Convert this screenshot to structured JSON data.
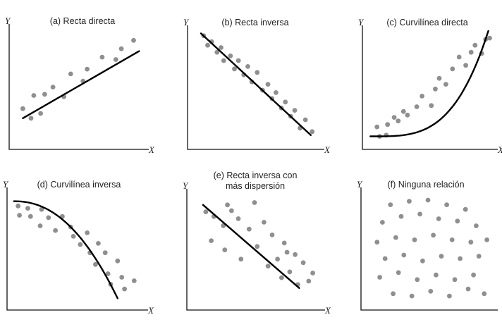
{
  "chart_data": [
    {
      "id": "a",
      "type": "scatter",
      "title_lines": [
        "(a) Recta directa"
      ],
      "xlabel": "X",
      "ylabel": "Y",
      "trend": {
        "kind": "line",
        "points": [
          [
            0.1,
            0.26
          ],
          [
            0.95,
            0.82
          ]
        ]
      },
      "points": [
        [
          0.1,
          0.34
        ],
        [
          0.16,
          0.26
        ],
        [
          0.18,
          0.45
        ],
        [
          0.23,
          0.3
        ],
        [
          0.26,
          0.46
        ],
        [
          0.32,
          0.52
        ],
        [
          0.4,
          0.44
        ],
        [
          0.45,
          0.63
        ],
        [
          0.54,
          0.57
        ],
        [
          0.57,
          0.67
        ],
        [
          0.68,
          0.77
        ],
        [
          0.78,
          0.75
        ],
        [
          0.82,
          0.84
        ],
        [
          0.91,
          0.91
        ]
      ]
    },
    {
      "id": "b",
      "type": "scatter",
      "title_lines": [
        "(b) Recta inversa"
      ],
      "xlabel": "X",
      "ylabel": "Y",
      "trend": {
        "kind": "line",
        "points": [
          [
            0.1,
            0.98
          ],
          [
            0.92,
            0.12
          ]
        ]
      },
      "points": [
        [
          0.12,
          0.96
        ],
        [
          0.15,
          0.88
        ],
        [
          0.18,
          0.91
        ],
        [
          0.22,
          0.82
        ],
        [
          0.25,
          0.86
        ],
        [
          0.27,
          0.75
        ],
        [
          0.32,
          0.79
        ],
        [
          0.35,
          0.68
        ],
        [
          0.38,
          0.75
        ],
        [
          0.42,
          0.63
        ],
        [
          0.45,
          0.7
        ],
        [
          0.48,
          0.57
        ],
        [
          0.52,
          0.65
        ],
        [
          0.56,
          0.5
        ],
        [
          0.6,
          0.55
        ],
        [
          0.63,
          0.43
        ],
        [
          0.66,
          0.48
        ],
        [
          0.7,
          0.35
        ],
        [
          0.73,
          0.4
        ],
        [
          0.77,
          0.28
        ],
        [
          0.8,
          0.33
        ],
        [
          0.84,
          0.18
        ],
        [
          0.88,
          0.25
        ],
        [
          0.93,
          0.15
        ]
      ]
    },
    {
      "id": "c",
      "type": "scatter",
      "title_lines": [
        "(c) Curvilínea directa"
      ],
      "xlabel": "X",
      "ylabel": "Y",
      "trend": {
        "kind": "power",
        "p": 3.5,
        "x0": 0.06,
        "x1": 0.95,
        "y0": 0.11,
        "y1": 1.0
      },
      "points": [
        [
          0.11,
          0.19
        ],
        [
          0.13,
          0.11
        ],
        [
          0.18,
          0.12
        ],
        [
          0.19,
          0.21
        ],
        [
          0.24,
          0.27
        ],
        [
          0.27,
          0.24
        ],
        [
          0.31,
          0.32
        ],
        [
          0.34,
          0.29
        ],
        [
          0.41,
          0.36
        ],
        [
          0.45,
          0.45
        ],
        [
          0.52,
          0.37
        ],
        [
          0.55,
          0.51
        ],
        [
          0.58,
          0.6
        ],
        [
          0.63,
          0.55
        ],
        [
          0.68,
          0.68
        ],
        [
          0.73,
          0.78
        ],
        [
          0.78,
          0.71
        ],
        [
          0.82,
          0.82
        ],
        [
          0.85,
          0.88
        ],
        [
          0.9,
          0.81
        ],
        [
          0.93,
          0.93
        ],
        [
          0.96,
          0.94
        ]
      ]
    },
    {
      "id": "d",
      "type": "scatter",
      "title_lines": [
        "(d) Curvilínea inversa"
      ],
      "xlabel": "X",
      "ylabel": "Y",
      "trend": {
        "kind": "power-inverse",
        "p": 2.2,
        "x0": 0.05,
        "x1": 0.8,
        "y0": 0.1,
        "y1": 0.93
      },
      "points": [
        [
          0.08,
          0.89
        ],
        [
          0.09,
          0.81
        ],
        [
          0.15,
          0.87
        ],
        [
          0.17,
          0.8
        ],
        [
          0.24,
          0.72
        ],
        [
          0.25,
          0.86
        ],
        [
          0.3,
          0.79
        ],
        [
          0.35,
          0.68
        ],
        [
          0.4,
          0.8
        ],
        [
          0.46,
          0.71
        ],
        [
          0.48,
          0.63
        ],
        [
          0.53,
          0.56
        ],
        [
          0.58,
          0.66
        ],
        [
          0.6,
          0.49
        ],
        [
          0.64,
          0.39
        ],
        [
          0.66,
          0.57
        ],
        [
          0.71,
          0.49
        ],
        [
          0.73,
          0.31
        ],
        [
          0.75,
          0.22
        ],
        [
          0.8,
          0.42
        ],
        [
          0.83,
          0.28
        ],
        [
          0.85,
          0.18
        ],
        [
          0.92,
          0.25
        ]
      ]
    },
    {
      "id": "e",
      "type": "scatter",
      "title_lines": [
        "(e) Recta inversa con",
        "más dispersión"
      ],
      "xlabel": "X",
      "ylabel": "Y",
      "trend": {
        "kind": "line",
        "points": [
          [
            0.12,
            0.91
          ],
          [
            0.83,
            0.19
          ]
        ]
      },
      "points": [
        [
          0.14,
          0.85
        ],
        [
          0.2,
          0.81
        ],
        [
          0.27,
          0.73
        ],
        [
          0.3,
          0.91
        ],
        [
          0.33,
          0.86
        ],
        [
          0.38,
          0.79
        ],
        [
          0.46,
          0.7
        ],
        [
          0.5,
          0.93
        ],
        [
          0.52,
          0.55
        ],
        [
          0.57,
          0.76
        ],
        [
          0.63,
          0.65
        ],
        [
          0.67,
          0.44
        ],
        [
          0.72,
          0.58
        ],
        [
          0.76,
          0.33
        ],
        [
          0.8,
          0.48
        ],
        [
          0.86,
          0.41
        ],
        [
          0.9,
          0.25
        ],
        [
          0.93,
          0.32
        ],
        [
          0.18,
          0.6
        ],
        [
          0.28,
          0.52
        ],
        [
          0.4,
          0.44
        ],
        [
          0.6,
          0.38
        ],
        [
          0.7,
          0.28
        ],
        [
          0.82,
          0.22
        ],
        [
          0.74,
          0.5
        ]
      ]
    },
    {
      "id": "f",
      "type": "scatter",
      "title_lines": [
        "(f) Ninguna relación"
      ],
      "xlabel": "",
      "ylabel": "Y",
      "trend": null,
      "points": [
        [
          0.22,
          0.9
        ],
        [
          0.36,
          0.93
        ],
        [
          0.5,
          0.94
        ],
        [
          0.64,
          0.9
        ],
        [
          0.78,
          0.86
        ],
        [
          0.16,
          0.75
        ],
        [
          0.3,
          0.8
        ],
        [
          0.44,
          0.82
        ],
        [
          0.58,
          0.78
        ],
        [
          0.72,
          0.76
        ],
        [
          0.86,
          0.72
        ],
        [
          0.12,
          0.58
        ],
        [
          0.26,
          0.62
        ],
        [
          0.4,
          0.6
        ],
        [
          0.54,
          0.64
        ],
        [
          0.68,
          0.6
        ],
        [
          0.82,
          0.58
        ],
        [
          0.94,
          0.6
        ],
        [
          0.18,
          0.44
        ],
        [
          0.32,
          0.47
        ],
        [
          0.46,
          0.42
        ],
        [
          0.6,
          0.46
        ],
        [
          0.74,
          0.44
        ],
        [
          0.88,
          0.46
        ],
        [
          0.14,
          0.28
        ],
        [
          0.28,
          0.32
        ],
        [
          0.42,
          0.26
        ],
        [
          0.56,
          0.3
        ],
        [
          0.7,
          0.26
        ],
        [
          0.84,
          0.3
        ],
        [
          0.24,
          0.14
        ],
        [
          0.38,
          0.12
        ],
        [
          0.52,
          0.16
        ],
        [
          0.66,
          0.12
        ],
        [
          0.8,
          0.18
        ],
        [
          0.92,
          0.14
        ]
      ]
    }
  ]
}
